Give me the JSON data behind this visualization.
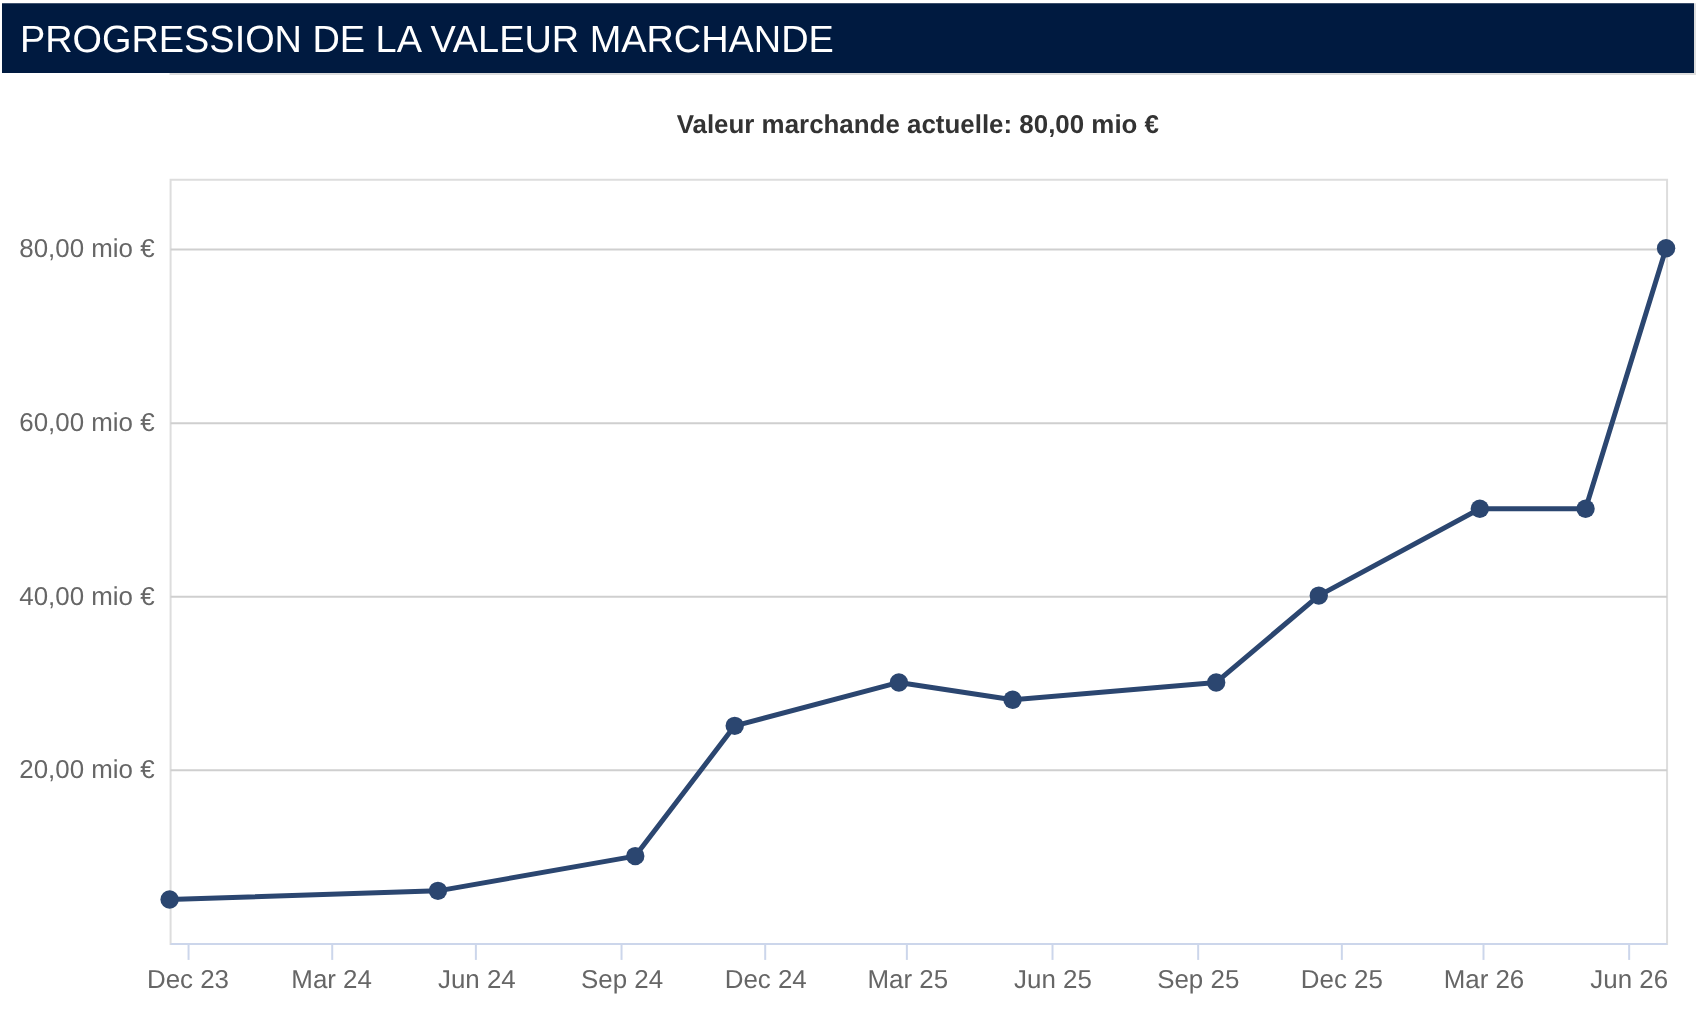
{
  "chart_data": {
    "type": "line",
    "title": "PROGRESSION DE LA VALEUR MARCHANDE",
    "subtitle": "Valeur marchande actuelle: 80,00 mio €",
    "x": [
      "2023-11-20",
      "2024-05-08",
      "2024-09-10",
      "2024-11-12",
      "2025-02-24",
      "2025-05-07",
      "2025-09-13",
      "2025-11-17",
      "2026-02-27",
      "2026-05-05",
      "2026-06-25"
    ],
    "series": [
      {
        "color": "#2b4670",
        "values": [
          5,
          6,
          10,
          25,
          30,
          28,
          30,
          40,
          50,
          50,
          80
        ]
      }
    ],
    "xlim": [
      "2023-11-20",
      "2026-06-25"
    ],
    "xticks": [
      {
        "value": "2023-12-01",
        "label": "Dec 23"
      },
      {
        "value": "2024-03-01",
        "label": "Mar 24"
      },
      {
        "value": "2024-06-01",
        "label": "Jun 24"
      },
      {
        "value": "2024-09-01",
        "label": "Sep 24"
      },
      {
        "value": "2024-12-01",
        "label": "Dec 24"
      },
      {
        "value": "2025-03-01",
        "label": "Mar 25"
      },
      {
        "value": "2025-06-01",
        "label": "Jun 25"
      },
      {
        "value": "2025-09-01",
        "label": "Sep 25"
      },
      {
        "value": "2025-12-01",
        "label": "Dec 25"
      },
      {
        "value": "2026-03-01",
        "label": "Mar 26"
      },
      {
        "value": "2026-06-01",
        "label": "Jun 26"
      }
    ],
    "ylim": [
      0,
      88
    ],
    "yticks": [
      {
        "value": 20,
        "label": "20,00 mio €"
      },
      {
        "value": 40,
        "label": "40,00 mio €"
      },
      {
        "value": 60,
        "label": "60,00 mio €"
      },
      {
        "value": 80,
        "label": "80,00 mio €"
      }
    ],
    "grid": "y",
    "marker": "circle",
    "line_style": "solid"
  }
}
